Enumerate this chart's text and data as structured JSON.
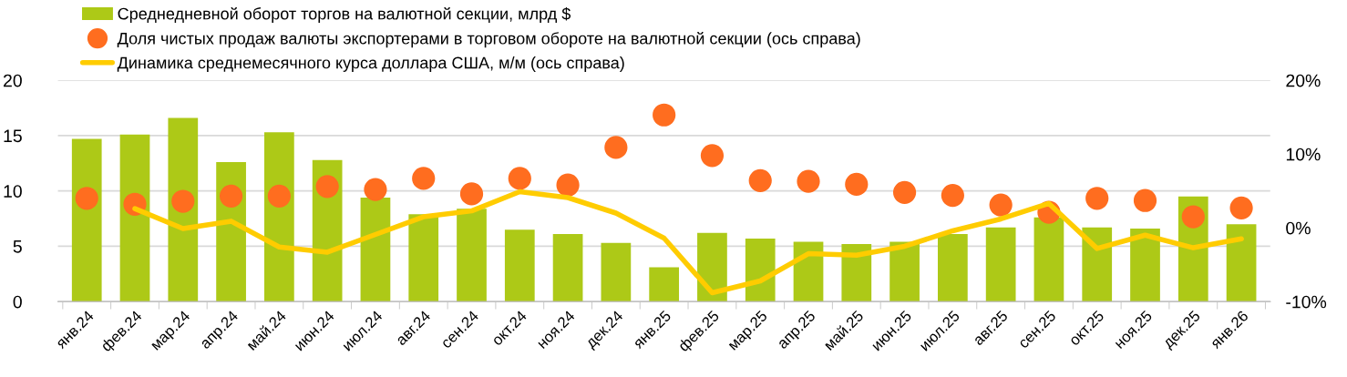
{
  "chart_data": {
    "type": "bar",
    "categories": [
      "янв.24",
      "фев.24",
      "мар.24",
      "апр.24",
      "май.24",
      "июн.24",
      "июл.24",
      "авг.24",
      "сен.24",
      "окт.24",
      "ноя.24",
      "дек.24",
      "янв.25",
      "фев.25",
      "мар.25",
      "апр.25",
      "май.25",
      "июн.25",
      "июл.25",
      "авг.25",
      "сен.25",
      "окт.25",
      "ноя.25",
      "дек.25",
      "янв.26"
    ],
    "series": [
      {
        "name": "Среднедневной оборот торгов на валютной секции, млрд $",
        "color": "#adc917",
        "values": [
          14.7,
          15.1,
          16.6,
          12.6,
          15.3,
          12.8,
          9.4,
          7.9,
          8.4,
          6.5,
          6.1,
          5.3,
          3.1,
          6.2,
          5.7,
          5.4,
          5.2,
          5.4,
          6.1,
          6.7,
          7.6,
          6.7,
          6.6,
          9.5,
          7.0
        ]
      },
      {
        "name": "Доля чистых продаж валюты экспортерами в торговом обороте на валютной секции (ось справа)",
        "type": "scatter",
        "axis": "y2",
        "marker": "circle",
        "color": "#ff6d1f",
        "values": [
          4.0,
          3.2,
          3.6,
          4.3,
          4.3,
          5.6,
          5.2,
          6.7,
          4.6,
          6.7,
          5.8,
          10.9,
          15.3,
          9.8,
          6.4,
          6.3,
          5.9,
          4.8,
          4.4,
          3.1,
          2.1,
          4.0,
          3.7,
          1.5,
          2.7
        ]
      },
      {
        "name": "Динамика среднемесячного курса доллара США, м/м (ось справа)",
        "type": "line",
        "axis": "y2",
        "marker": "none",
        "line_style": "solid",
        "color": "#ffcc00",
        "values": [
          null,
          2.6,
          -0.1,
          0.9,
          -2.6,
          -3.3,
          -0.9,
          1.5,
          2.3,
          4.9,
          4.1,
          2.0,
          -1.4,
          -8.8,
          -7.2,
          -3.5,
          -3.7,
          -2.5,
          -0.4,
          1.2,
          3.3,
          -2.8,
          -1.0,
          -2.7,
          -1.5
        ]
      }
    ],
    "ylim": [
      0,
      20
    ],
    "yticks": [
      0,
      5,
      10,
      15,
      20
    ],
    "y2lim": [
      -10,
      20
    ],
    "y2ticks": [
      {
        "value": -10,
        "label": "-10%"
      },
      {
        "value": 0,
        "label": "0%"
      },
      {
        "value": 10,
        "label": "10%"
      },
      {
        "value": 20,
        "label": "20%"
      }
    ],
    "grid": "y",
    "legend": "top left"
  }
}
